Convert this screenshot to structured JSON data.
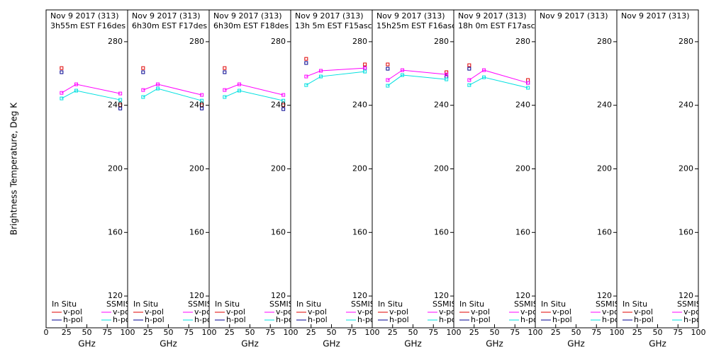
{
  "chart_data": [
    {
      "type": "line",
      "title": "Nov 9 2017 (313)",
      "subtitle": "3h55m EST F16des",
      "ylabel": "Brightness Temperature, Deg K",
      "xlabel": "GHz",
      "xlim": [
        0,
        100
      ],
      "xticks": [
        0,
        25,
        50,
        75,
        100
      ],
      "ylim": [
        100,
        300
      ],
      "yticks": [
        120,
        160,
        200,
        240,
        280
      ],
      "legend_groups": [
        "In Situ",
        "SSMIS"
      ],
      "series": [
        {
          "name": "v-pol",
          "group": "In Situ",
          "color": "#e00000",
          "marker": "square",
          "line": false,
          "x": [
            19,
            91
          ],
          "values": [
            263.4,
            240
          ]
        },
        {
          "name": "h-pol",
          "group": "In Situ",
          "color": "#000090",
          "marker": "square",
          "line": false,
          "x": [
            19,
            91
          ],
          "values": [
            260.8,
            238
          ]
        },
        {
          "name": "v-pol",
          "group": "SSMIS",
          "color": "#ff00ff",
          "marker": "square",
          "line": true,
          "x": [
            19,
            37,
            91
          ],
          "values": [
            247.8,
            253.2,
            247.4
          ]
        },
        {
          "name": "h-pol",
          "group": "SSMIS",
          "color": "#00e0e0",
          "marker": "square",
          "line": true,
          "x": [
            19,
            37,
            91
          ],
          "values": [
            244.3,
            249.2,
            243.4
          ]
        }
      ]
    },
    {
      "type": "line",
      "title": "Nov 9 2017 (313)",
      "subtitle": "6h30m EST F17des",
      "xlabel": "GHz",
      "xlim": [
        0,
        100
      ],
      "xticks": [
        25,
        50,
        75,
        100
      ],
      "ylim": [
        100,
        300
      ],
      "yticks": [
        120,
        160,
        200,
        240,
        280
      ],
      "legend_groups": [
        "In Situ",
        "SSMIS"
      ],
      "series": [
        {
          "name": "v-pol",
          "group": "In Situ",
          "color": "#e00000",
          "marker": "square",
          "line": false,
          "x": [
            19,
            91
          ],
          "values": [
            263.4,
            240
          ]
        },
        {
          "name": "h-pol",
          "group": "In Situ",
          "color": "#000090",
          "marker": "square",
          "line": false,
          "x": [
            19,
            91
          ],
          "values": [
            260.8,
            238
          ]
        },
        {
          "name": "v-pol",
          "group": "SSMIS",
          "color": "#ff00ff",
          "marker": "square",
          "line": true,
          "x": [
            19,
            37,
            91
          ],
          "values": [
            249.6,
            253.2,
            246.5
          ]
        },
        {
          "name": "h-pol",
          "group": "SSMIS",
          "color": "#00e0e0",
          "marker": "square",
          "line": true,
          "x": [
            19,
            37,
            91
          ],
          "values": [
            245.2,
            250.5,
            242.9
          ]
        }
      ]
    },
    {
      "type": "line",
      "title": "Nov 9 2017 (313)",
      "subtitle": "6h30m EST F18des",
      "xlabel": "GHz",
      "xlim": [
        0,
        100
      ],
      "xticks": [
        25,
        50,
        75,
        100
      ],
      "ylim": [
        100,
        300
      ],
      "yticks": [
        120,
        160,
        200,
        240,
        280
      ],
      "legend_groups": [
        "In Situ",
        "SSMIS"
      ],
      "series": [
        {
          "name": "v-pol",
          "group": "In Situ",
          "color": "#e00000",
          "marker": "square",
          "line": false,
          "x": [
            19,
            91
          ],
          "values": [
            263.4,
            240
          ]
        },
        {
          "name": "h-pol",
          "group": "In Situ",
          "color": "#000090",
          "marker": "square",
          "line": false,
          "x": [
            19,
            91
          ],
          "values": [
            260.8,
            237.6
          ]
        },
        {
          "name": "v-pol",
          "group": "SSMIS",
          "color": "#ff00ff",
          "marker": "square",
          "line": true,
          "x": [
            19,
            37,
            91
          ],
          "values": [
            249.6,
            253.2,
            246.5
          ]
        },
        {
          "name": "h-pol",
          "group": "SSMIS",
          "color": "#00e0e0",
          "marker": "square",
          "line": true,
          "x": [
            19,
            37,
            91
          ],
          "values": [
            245.2,
            249.2,
            242.9
          ]
        }
      ]
    },
    {
      "type": "line",
      "title": "Nov 9 2017 (313)",
      "subtitle": "13h 5m EST F15asc",
      "xlabel": "GHz",
      "xlim": [
        0,
        100
      ],
      "xticks": [
        25,
        50,
        75,
        100
      ],
      "ylim": [
        100,
        300
      ],
      "yticks": [
        120,
        160,
        200,
        240,
        280
      ],
      "legend_groups": [
        "In Situ",
        "SSMIS"
      ],
      "series": [
        {
          "name": "v-pol",
          "group": "In Situ",
          "color": "#e00000",
          "marker": "square",
          "line": false,
          "x": [
            19,
            91
          ],
          "values": [
            269.2,
            265.7
          ]
        },
        {
          "name": "h-pol",
          "group": "In Situ",
          "color": "#000090",
          "marker": "square",
          "line": false,
          "x": [
            19,
            91
          ],
          "values": [
            266.6,
            263.4
          ]
        },
        {
          "name": "v-pol",
          "group": "SSMIS",
          "color": "#ff00ff",
          "marker": "square",
          "line": true,
          "x": [
            19,
            37,
            91
          ],
          "values": [
            258.1,
            261.7,
            263.4
          ]
        },
        {
          "name": "h-pol",
          "group": "SSMIS",
          "color": "#00e0e0",
          "marker": "square",
          "line": true,
          "x": [
            19,
            37,
            91
          ],
          "values": [
            252.7,
            258.1,
            261.2
          ]
        }
      ]
    },
    {
      "type": "line",
      "title": "Nov 9 2017 (313)",
      "subtitle": "15h25m EST F16asc",
      "xlabel": "GHz",
      "xlim": [
        0,
        100
      ],
      "xticks": [
        25,
        50,
        75,
        100
      ],
      "ylim": [
        100,
        300
      ],
      "yticks": [
        120,
        160,
        200,
        240,
        280
      ],
      "legend_groups": [
        "In Situ",
        "SSMIS"
      ],
      "series": [
        {
          "name": "v-pol",
          "group": "In Situ",
          "color": "#e00000",
          "marker": "square",
          "line": false,
          "x": [
            19,
            91
          ],
          "values": [
            265.7,
            260.8
          ]
        },
        {
          "name": "h-pol",
          "group": "In Situ",
          "color": "#000090",
          "marker": "square",
          "line": false,
          "x": [
            19,
            91
          ],
          "values": [
            263.0,
            258.1
          ]
        },
        {
          "name": "v-pol",
          "group": "SSMIS",
          "color": "#ff00ff",
          "marker": "square",
          "line": true,
          "x": [
            19,
            37,
            91
          ],
          "values": [
            255.9,
            262.1,
            259.4
          ]
        },
        {
          "name": "h-pol",
          "group": "SSMIS",
          "color": "#00e0e0",
          "marker": "square",
          "line": true,
          "x": [
            19,
            37,
            91
          ],
          "values": [
            252.3,
            259.0,
            256.3
          ]
        }
      ]
    },
    {
      "type": "line",
      "title": "Nov 9 2017 (313)",
      "subtitle": "18h 0m EST F17asc",
      "xlabel": "GHz",
      "xlim": [
        0,
        100
      ],
      "xticks": [
        25,
        50,
        75,
        100
      ],
      "ylim": [
        100,
        300
      ],
      "yticks": [
        120,
        160,
        200,
        240,
        280
      ],
      "legend_groups": [
        "In Situ",
        "SSMIS"
      ],
      "series": [
        {
          "name": "v-pol",
          "group": "In Situ",
          "color": "#e00000",
          "marker": "square",
          "line": false,
          "x": [
            19,
            91
          ],
          "values": [
            265.2,
            255.9
          ]
        },
        {
          "name": "h-pol",
          "group": "In Situ",
          "color": "#000090",
          "marker": "square",
          "line": false,
          "x": [
            19,
            91
          ],
          "values": [
            263.0,
            254.1
          ]
        },
        {
          "name": "v-pol",
          "group": "SSMIS",
          "color": "#ff00ff",
          "marker": "square",
          "line": true,
          "x": [
            19,
            37,
            91
          ],
          "values": [
            255.9,
            262.1,
            254.1
          ]
        },
        {
          "name": "h-pol",
          "group": "SSMIS",
          "color": "#00e0e0",
          "marker": "square",
          "line": true,
          "x": [
            19,
            37,
            91
          ],
          "values": [
            252.7,
            257.6,
            251.0
          ]
        }
      ]
    },
    {
      "type": "line",
      "title": "Nov 9 2017 (313)",
      "xlabel": "GHz",
      "xlim": [
        0,
        100
      ],
      "xticks": [
        25,
        50,
        75,
        100
      ],
      "ylim": [
        100,
        300
      ],
      "yticks": [
        120,
        160,
        200,
        240,
        280
      ],
      "legend_groups": [
        "In Situ",
        "SSMIS"
      ],
      "series": [
        {
          "name": "v-pol",
          "group": "In Situ",
          "color": "#e00000",
          "marker": "square",
          "line": false,
          "x": [],
          "values": []
        },
        {
          "name": "h-pol",
          "group": "In Situ",
          "color": "#000090",
          "marker": "square",
          "line": false,
          "x": [],
          "values": []
        },
        {
          "name": "v-pol",
          "group": "SSMIS",
          "color": "#ff00ff",
          "marker": "square",
          "line": true,
          "x": [],
          "values": []
        },
        {
          "name": "h-pol",
          "group": "SSMIS",
          "color": "#00e0e0",
          "marker": "square",
          "line": true,
          "x": [],
          "values": []
        }
      ]
    },
    {
      "type": "line",
      "title": "Nov 9 2017 (313)",
      "xlabel": "GHz",
      "xlim": [
        0,
        100
      ],
      "xticks": [
        25,
        50,
        75,
        100
      ],
      "ylim": [
        100,
        300
      ],
      "yticks": [
        120,
        160,
        200,
        240,
        280
      ],
      "legend_groups": [
        "In Situ",
        "SSMIS"
      ],
      "series": [
        {
          "name": "v-pol",
          "group": "In Situ",
          "color": "#e00000",
          "marker": "square",
          "line": false,
          "x": [],
          "values": []
        },
        {
          "name": "h-pol",
          "group": "In Situ",
          "color": "#000090",
          "marker": "square",
          "line": false,
          "x": [],
          "values": []
        },
        {
          "name": "v-pol",
          "group": "SSMIS",
          "color": "#ff00ff",
          "marker": "square",
          "line": true,
          "x": [],
          "values": []
        },
        {
          "name": "h-pol",
          "group": "SSMIS",
          "color": "#00e0e0",
          "marker": "square",
          "line": true,
          "x": [],
          "values": []
        }
      ]
    }
  ]
}
